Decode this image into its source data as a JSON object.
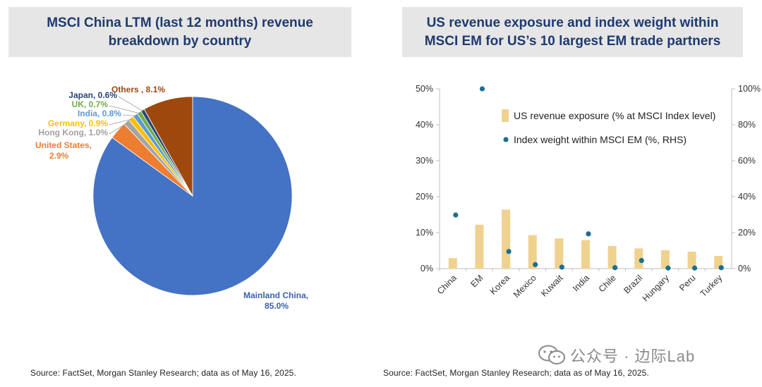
{
  "left_panel": {
    "title": "MSCI China LTM (last 12 months) revenue breakdown by country",
    "source": "Source: FactSet, Morgan Stanley Research; data as of May 16, 2025."
  },
  "right_panel": {
    "title": "US revenue exposure and index weight within MSCI EM for US’s 10 largest EM trade partners",
    "source": "Source: FactSet, Morgan Stanley Research; data as of May 16, 2025."
  },
  "watermark": {
    "text": "公众号 · 边际Lab",
    "icon": "wechat-icon"
  },
  "chart_data": [
    {
      "type": "pie",
      "title": "MSCI China LTM (last 12 months) revenue breakdown by country",
      "slices": [
        {
          "name": "Mainland China",
          "label": "Mainland China,",
          "value_label": "85.0%",
          "value": 85.0,
          "color": "#4472c4"
        },
        {
          "name": "United States",
          "label": "United States,",
          "value_label": "2.9%",
          "value": 2.9,
          "color": "#ed7d31"
        },
        {
          "name": "Hong Kong",
          "label": "Hong Kong, 1.0%",
          "value": 1.0,
          "color": "#a5a5a5"
        },
        {
          "name": "Germany",
          "label": "Germany, 0.9%",
          "value": 0.9,
          "color": "#ffc000"
        },
        {
          "name": "India",
          "label": "India, 0.8%",
          "value": 0.8,
          "color": "#5b9bd5"
        },
        {
          "name": "UK",
          "label": "UK, 0.7%",
          "value": 0.7,
          "color": "#70ad47"
        },
        {
          "name": "Japan",
          "label": "Japan, 0.6%",
          "value": 0.6,
          "color": "#264478"
        },
        {
          "name": "Others",
          "label": "Others , 8.1%",
          "value": 8.1,
          "color": "#9e480e"
        }
      ]
    },
    {
      "type": "bar",
      "title": "US revenue exposure and index weight within MSCI EM for US’s 10 largest EM trade partners",
      "categories": [
        "China",
        "EM",
        "Korea",
        "Mexico",
        "Kuwait",
        "India",
        "Chile",
        "Brazil",
        "Hungary",
        "Peru",
        "Turkey"
      ],
      "left_ticks": [
        "0%",
        "10%",
        "20%",
        "30%",
        "40%",
        "50%"
      ],
      "right_ticks": [
        "0%",
        "20%",
        "40%",
        "60%",
        "80%",
        "100%"
      ],
      "ylim_left": [
        0,
        50
      ],
      "ylim_right": [
        0,
        100
      ],
      "grid": false,
      "legend_position": "top-right",
      "series": [
        {
          "name": "US revenue exposure (% at MSCI Index level)",
          "axis": "left",
          "kind": "bar",
          "color": "#f0d28f",
          "values": [
            2.9,
            12.2,
            16.4,
            9.3,
            8.4,
            7.9,
            6.3,
            5.6,
            5.1,
            4.7,
            3.5
          ]
        },
        {
          "name": "Index weight within MSCI EM (%, RHS)",
          "axis": "right",
          "kind": "scatter",
          "color": "#1a6f8f",
          "values": [
            29.8,
            100,
            9.5,
            2.2,
            0.8,
            19.3,
            0.5,
            4.5,
            0.3,
            0.3,
            0.5
          ]
        }
      ]
    }
  ]
}
